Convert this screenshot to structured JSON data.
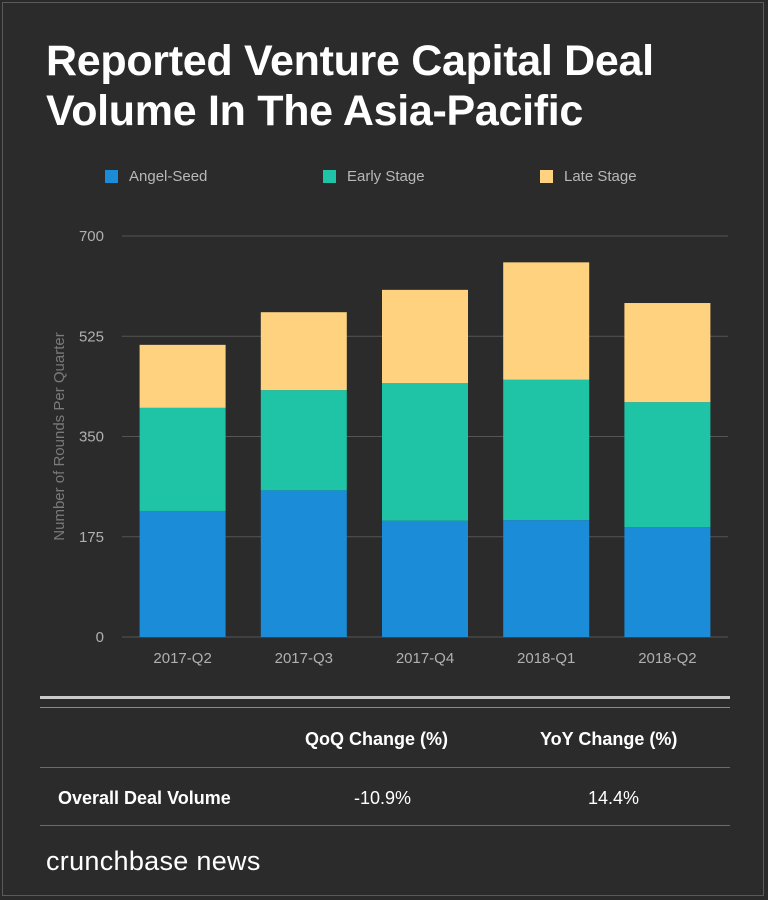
{
  "title": "Reported Venture Capital Deal Volume In The Asia-Pacific",
  "colors": {
    "angel_seed": "#1a8cd8",
    "early_stage": "#1fc4a6",
    "late_stage": "#ffd27f",
    "grid": "#555555",
    "tick_text": "#b0b0b0"
  },
  "chart_data": {
    "type": "bar",
    "stacked": true,
    "categories": [
      "2017-Q2",
      "2017-Q3",
      "2017-Q4",
      "2018-Q1",
      "2018-Q2"
    ],
    "series": [
      {
        "name": "Angel-Seed",
        "values": [
          220,
          256,
          203,
          204,
          192
        ]
      },
      {
        "name": "Early Stage",
        "values": [
          180,
          175,
          240,
          245,
          218
        ]
      },
      {
        "name": "Late Stage",
        "values": [
          110,
          136,
          163,
          205,
          173
        ]
      }
    ],
    "ylabel": "Number of Rounds Per Quarter",
    "yticks": [
      0,
      175,
      350,
      525,
      700
    ],
    "ylim": [
      0,
      700
    ],
    "grid": true,
    "legend": "top"
  },
  "table": {
    "col_qoq": "QoQ Change (%)",
    "col_yoy": "YoY Change (%)",
    "row_label": "Overall Deal Volume",
    "qoq_value": "-10.9%",
    "yoy_value": "14.4%"
  },
  "brand": "crunchbase news"
}
